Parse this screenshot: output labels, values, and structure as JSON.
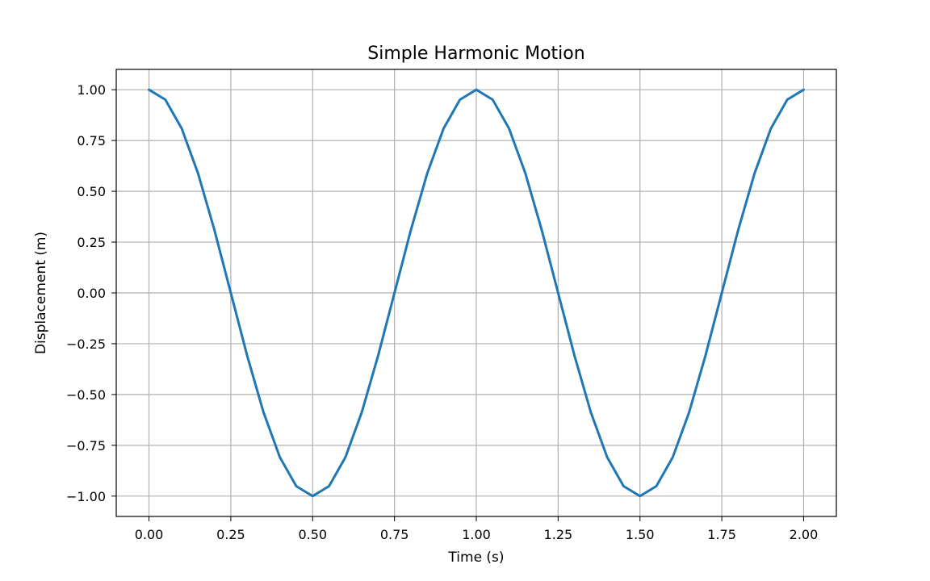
{
  "chart_data": {
    "type": "line",
    "title": "Simple Harmonic Motion",
    "xlabel": "Time (s)",
    "ylabel": "Displacement (m)",
    "xlim": [
      -0.1,
      2.1
    ],
    "ylim": [
      -1.1,
      1.1
    ],
    "xticks": [
      0.0,
      0.25,
      0.5,
      0.75,
      1.0,
      1.25,
      1.5,
      1.75,
      2.0
    ],
    "xtick_labels": [
      "0.00",
      "0.25",
      "0.50",
      "0.75",
      "1.00",
      "1.25",
      "1.50",
      "1.75",
      "2.00"
    ],
    "yticks": [
      1.0,
      0.75,
      0.5,
      0.25,
      0.0,
      -0.25,
      -0.5,
      -0.75,
      -1.0
    ],
    "ytick_labels": [
      "1.00",
      "0.75",
      "0.50",
      "0.25",
      "0.00",
      "−0.25",
      "−0.50",
      "−0.75",
      "−1.00"
    ],
    "grid": true,
    "legend": "none",
    "series": [
      {
        "color": "#1f77b4",
        "x": [
          0.0,
          0.05,
          0.1,
          0.15,
          0.2,
          0.25,
          0.3,
          0.35,
          0.4,
          0.45,
          0.5,
          0.55,
          0.6,
          0.65,
          0.7,
          0.75,
          0.8,
          0.85,
          0.9,
          0.95,
          1.0,
          1.05,
          1.1,
          1.15,
          1.2,
          1.25,
          1.3,
          1.35,
          1.4,
          1.45,
          1.5,
          1.55,
          1.6,
          1.65,
          1.7,
          1.75,
          1.8,
          1.85,
          1.9,
          1.95,
          2.0
        ],
        "y": [
          1.0,
          0.951,
          0.809,
          0.588,
          0.309,
          0.0,
          -0.309,
          -0.588,
          -0.809,
          -0.951,
          -1.0,
          -0.951,
          -0.809,
          -0.588,
          -0.309,
          0.0,
          0.309,
          0.588,
          0.809,
          0.951,
          1.0,
          0.951,
          0.809,
          0.588,
          0.309,
          0.0,
          -0.309,
          -0.588,
          -0.809,
          -0.951,
          -1.0,
          -0.951,
          -0.809,
          -0.588,
          -0.309,
          0.0,
          0.309,
          0.588,
          0.809,
          0.951,
          1.0
        ]
      }
    ]
  }
}
